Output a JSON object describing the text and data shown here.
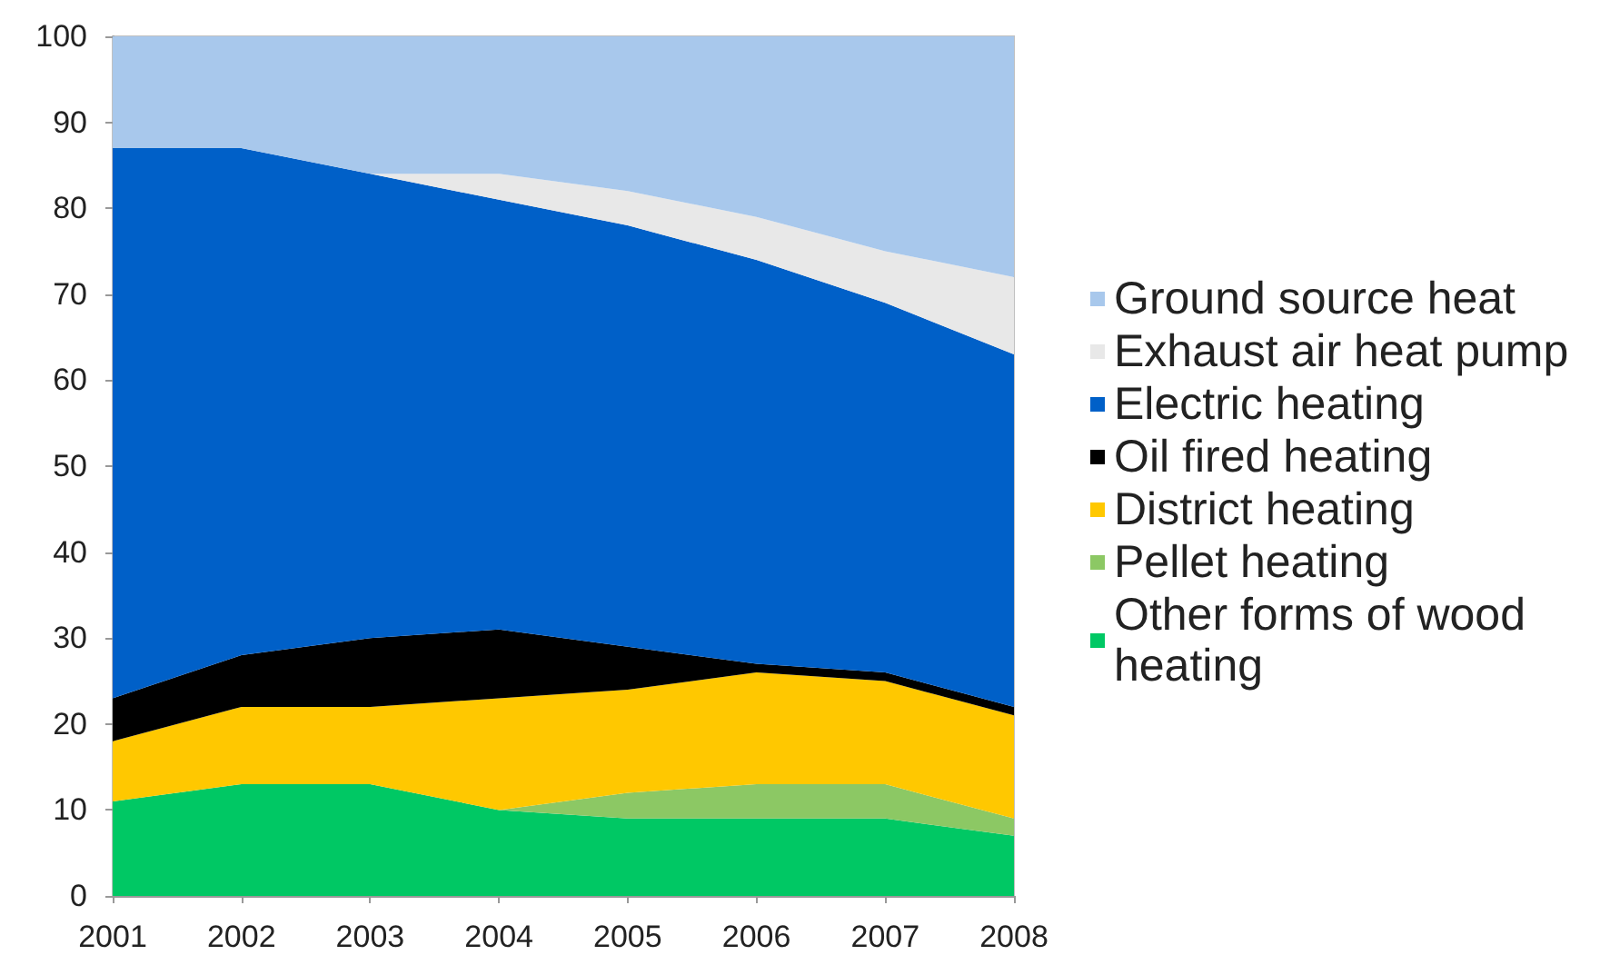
{
  "chart_data": {
    "type": "area",
    "stacked": true,
    "categories": [
      "2001",
      "2002",
      "2003",
      "2004",
      "2005",
      "2006",
      "2007",
      "2008"
    ],
    "series": [
      {
        "name": "Other forms of wood heating",
        "color": "#00c864",
        "values": [
          11,
          13,
          13,
          10,
          9,
          9,
          9,
          7
        ]
      },
      {
        "name": "Pellet heating",
        "color": "#8cc864",
        "values": [
          0,
          0,
          0,
          0,
          3,
          4,
          4,
          2
        ]
      },
      {
        "name": "District heating",
        "color": "#ffc800",
        "values": [
          7,
          9,
          9,
          13,
          12,
          13,
          12,
          12
        ]
      },
      {
        "name": "Oil fired heating",
        "color": "#000000",
        "values": [
          5,
          6,
          8,
          8,
          5,
          1,
          1,
          1
        ]
      },
      {
        "name": "Electric heating",
        "color": "#0060c8",
        "values": [
          64,
          59,
          54,
          50,
          49,
          47,
          43,
          41
        ]
      },
      {
        "name": "Exhaust air heat pump",
        "color": "#e8e8e8",
        "values": [
          0,
          0,
          0,
          3,
          4,
          5,
          6,
          9
        ]
      },
      {
        "name": "Ground source heat",
        "color": "#a8c8ec",
        "values": [
          13,
          13,
          16,
          16,
          18,
          21,
          25,
          28
        ]
      }
    ],
    "ylim": [
      0,
      100
    ],
    "yticks": [
      0,
      10,
      20,
      30,
      40,
      50,
      60,
      70,
      80,
      90,
      100
    ],
    "grid": false,
    "legend": "right"
  }
}
